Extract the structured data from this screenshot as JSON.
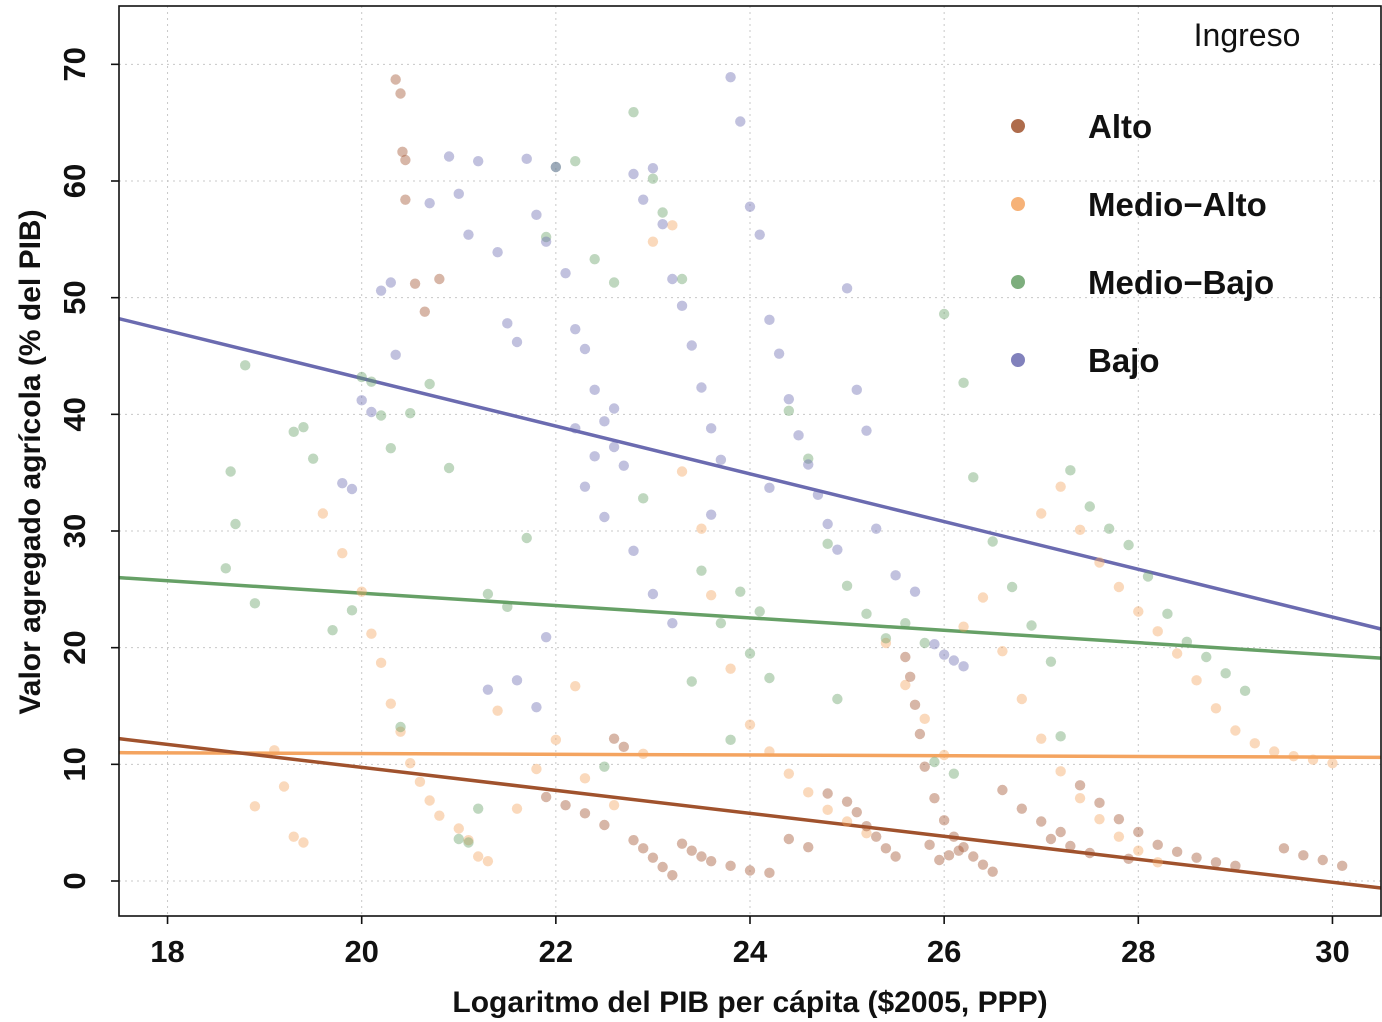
{
  "chart_data": {
    "type": "scatter",
    "title": "",
    "xlabel": "Logaritmo del PIB per cápita ($2005, PPP)",
    "ylabel": "Valor agregado agrícola (% del PIB)",
    "xlim": [
      17.5,
      30.5
    ],
    "ylim": [
      -3,
      75
    ],
    "xticks": [
      18,
      20,
      22,
      24,
      26,
      28,
      30
    ],
    "yticks": [
      0,
      10,
      20,
      30,
      40,
      50,
      60,
      70
    ],
    "grid": true,
    "legend": {
      "title": "Ingreso",
      "position": "top-right"
    },
    "series": [
      {
        "name": "Alto",
        "color": "#a0522d",
        "fit": {
          "x": [
            17.5,
            30.5
          ],
          "y": [
            12.2,
            -0.6
          ]
        },
        "points": [
          [
            20.35,
            68.7
          ],
          [
            20.4,
            67.5
          ],
          [
            20.42,
            62.5
          ],
          [
            20.45,
            61.8
          ],
          [
            20.45,
            58.4
          ],
          [
            20.55,
            51.2
          ],
          [
            20.8,
            51.6
          ],
          [
            20.65,
            48.8
          ],
          [
            21.9,
            7.2
          ],
          [
            22.1,
            6.5
          ],
          [
            22.3,
            5.8
          ],
          [
            22.5,
            4.8
          ],
          [
            22.6,
            12.2
          ],
          [
            22.7,
            11.5
          ],
          [
            22.8,
            3.5
          ],
          [
            22.9,
            2.8
          ],
          [
            23.0,
            2.0
          ],
          [
            23.1,
            1.2
          ],
          [
            23.2,
            0.5
          ],
          [
            23.3,
            3.2
          ],
          [
            23.4,
            2.6
          ],
          [
            23.5,
            2.1
          ],
          [
            23.6,
            1.7
          ],
          [
            23.8,
            1.3
          ],
          [
            24.0,
            0.9
          ],
          [
            24.2,
            0.7
          ],
          [
            24.4,
            3.6
          ],
          [
            24.6,
            2.9
          ],
          [
            24.8,
            7.5
          ],
          [
            25.0,
            6.8
          ],
          [
            25.1,
            5.9
          ],
          [
            25.2,
            4.7
          ],
          [
            25.3,
            3.8
          ],
          [
            25.4,
            2.8
          ],
          [
            25.5,
            2.1
          ],
          [
            25.6,
            19.2
          ],
          [
            25.65,
            17.5
          ],
          [
            25.7,
            15.1
          ],
          [
            25.75,
            12.6
          ],
          [
            25.8,
            9.8
          ],
          [
            25.9,
            7.1
          ],
          [
            26.0,
            5.2
          ],
          [
            26.1,
            3.8
          ],
          [
            26.2,
            2.9
          ],
          [
            26.3,
            2.1
          ],
          [
            26.4,
            1.4
          ],
          [
            26.5,
            0.8
          ],
          [
            26.6,
            7.8
          ],
          [
            26.8,
            6.2
          ],
          [
            27.0,
            5.1
          ],
          [
            27.2,
            4.2
          ],
          [
            27.4,
            8.2
          ],
          [
            27.6,
            6.7
          ],
          [
            27.8,
            5.3
          ],
          [
            28.0,
            4.2
          ],
          [
            28.2,
            3.1
          ],
          [
            28.4,
            2.5
          ],
          [
            28.6,
            2.0
          ],
          [
            28.8,
            1.6
          ],
          [
            29.0,
            1.3
          ],
          [
            29.5,
            2.8
          ],
          [
            29.7,
            2.2
          ],
          [
            29.9,
            1.8
          ],
          [
            30.1,
            1.3
          ],
          [
            26.05,
            2.2
          ],
          [
            25.95,
            1.8
          ],
          [
            26.15,
            2.6
          ],
          [
            25.85,
            3.1
          ],
          [
            27.1,
            3.6
          ],
          [
            27.3,
            3.0
          ],
          [
            27.5,
            2.4
          ],
          [
            27.9,
            1.9
          ]
        ]
      },
      {
        "name": "Medio−Alto",
        "color": "#f4a460",
        "fit": {
          "x": [
            17.5,
            30.5
          ],
          "y": [
            11.0,
            10.6
          ]
        },
        "points": [
          [
            19.3,
            3.8
          ],
          [
            19.4,
            3.3
          ],
          [
            19.6,
            31.5
          ],
          [
            19.8,
            28.1
          ],
          [
            20.0,
            24.8
          ],
          [
            20.1,
            21.2
          ],
          [
            20.2,
            18.7
          ],
          [
            20.3,
            15.2
          ],
          [
            20.4,
            12.8
          ],
          [
            20.5,
            10.1
          ],
          [
            20.6,
            8.5
          ],
          [
            20.7,
            6.9
          ],
          [
            20.8,
            5.6
          ],
          [
            21.0,
            4.5
          ],
          [
            21.1,
            3.5
          ],
          [
            21.2,
            2.1
          ],
          [
            21.3,
            1.7
          ],
          [
            21.6,
            6.2
          ],
          [
            21.8,
            9.6
          ],
          [
            22.0,
            12.1
          ],
          [
            22.3,
            8.8
          ],
          [
            22.6,
            6.5
          ],
          [
            22.9,
            10.9
          ],
          [
            23.0,
            54.8
          ],
          [
            23.2,
            56.2
          ],
          [
            23.3,
            35.1
          ],
          [
            23.5,
            30.2
          ],
          [
            23.6,
            24.5
          ],
          [
            23.8,
            18.2
          ],
          [
            24.0,
            13.4
          ],
          [
            24.2,
            11.1
          ],
          [
            24.4,
            9.2
          ],
          [
            24.6,
            7.6
          ],
          [
            24.8,
            6.1
          ],
          [
            25.0,
            5.1
          ],
          [
            25.2,
            4.1
          ],
          [
            25.4,
            20.4
          ],
          [
            25.6,
            16.8
          ],
          [
            25.8,
            13.9
          ],
          [
            26.0,
            10.8
          ],
          [
            26.2,
            21.8
          ],
          [
            26.4,
            24.3
          ],
          [
            26.6,
            19.7
          ],
          [
            26.8,
            15.6
          ],
          [
            27.0,
            12.2
          ],
          [
            27.2,
            9.4
          ],
          [
            27.4,
            7.1
          ],
          [
            27.6,
            5.3
          ],
          [
            27.8,
            3.8
          ],
          [
            28.0,
            2.6
          ],
          [
            28.2,
            1.6
          ],
          [
            27.0,
            31.5
          ],
          [
            27.2,
            33.8
          ],
          [
            27.4,
            30.1
          ],
          [
            27.6,
            27.3
          ],
          [
            27.8,
            25.2
          ],
          [
            28.0,
            23.1
          ],
          [
            28.2,
            21.4
          ],
          [
            28.4,
            19.5
          ],
          [
            28.6,
            17.2
          ],
          [
            28.8,
            14.8
          ],
          [
            29.0,
            12.9
          ],
          [
            29.2,
            11.8
          ],
          [
            29.4,
            11.1
          ],
          [
            29.6,
            10.7
          ],
          [
            29.8,
            10.4
          ],
          [
            30.0,
            10.1
          ],
          [
            19.2,
            8.1
          ],
          [
            19.1,
            11.2
          ],
          [
            18.9,
            6.4
          ],
          [
            21.4,
            14.6
          ],
          [
            22.2,
            16.7
          ]
        ]
      },
      {
        "name": "Medio−Bajo",
        "color": "#66a066",
        "fit": {
          "x": [
            17.5,
            30.5
          ],
          "y": [
            26.0,
            19.1
          ]
        },
        "points": [
          [
            18.6,
            26.8
          ],
          [
            18.7,
            30.6
          ],
          [
            18.8,
            44.2
          ],
          [
            18.65,
            35.1
          ],
          [
            18.9,
            23.8
          ],
          [
            19.3,
            38.5
          ],
          [
            19.5,
            36.2
          ],
          [
            19.4,
            38.9
          ],
          [
            19.7,
            21.5
          ],
          [
            19.9,
            23.2
          ],
          [
            20.0,
            43.2
          ],
          [
            20.1,
            42.8
          ],
          [
            20.2,
            39.9
          ],
          [
            20.3,
            37.1
          ],
          [
            20.5,
            40.1
          ],
          [
            20.7,
            42.6
          ],
          [
            20.9,
            35.4
          ],
          [
            21.0,
            3.6
          ],
          [
            21.1,
            3.3
          ],
          [
            21.2,
            6.2
          ],
          [
            21.5,
            23.5
          ],
          [
            21.7,
            29.4
          ],
          [
            21.9,
            55.2
          ],
          [
            22.0,
            61.2
          ],
          [
            22.2,
            61.7
          ],
          [
            22.4,
            53.3
          ],
          [
            22.6,
            51.3
          ],
          [
            22.8,
            65.9
          ],
          [
            23.0,
            60.2
          ],
          [
            23.1,
            57.3
          ],
          [
            23.3,
            51.6
          ],
          [
            23.5,
            26.6
          ],
          [
            23.7,
            22.1
          ],
          [
            23.9,
            24.8
          ],
          [
            24.0,
            19.5
          ],
          [
            24.2,
            17.4
          ],
          [
            24.4,
            40.3
          ],
          [
            24.6,
            36.2
          ],
          [
            24.8,
            28.9
          ],
          [
            25.0,
            25.3
          ],
          [
            25.2,
            22.9
          ],
          [
            25.4,
            20.8
          ],
          [
            25.6,
            22.1
          ],
          [
            25.8,
            20.4
          ],
          [
            26.0,
            48.6
          ],
          [
            26.2,
            42.7
          ],
          [
            26.3,
            34.6
          ],
          [
            26.5,
            29.1
          ],
          [
            26.7,
            25.2
          ],
          [
            26.9,
            21.9
          ],
          [
            27.1,
            18.8
          ],
          [
            27.3,
            35.2
          ],
          [
            27.5,
            32.1
          ],
          [
            27.7,
            30.2
          ],
          [
            27.9,
            28.8
          ],
          [
            28.1,
            26.1
          ],
          [
            28.3,
            22.9
          ],
          [
            28.5,
            20.5
          ],
          [
            28.7,
            19.2
          ],
          [
            28.9,
            17.8
          ],
          [
            29.1,
            16.3
          ],
          [
            23.4,
            17.1
          ],
          [
            24.1,
            23.1
          ],
          [
            22.9,
            32.8
          ],
          [
            21.3,
            24.6
          ],
          [
            22.5,
            9.8
          ],
          [
            23.8,
            12.1
          ],
          [
            24.9,
            15.6
          ],
          [
            25.9,
            10.2
          ],
          [
            26.1,
            9.2
          ],
          [
            27.2,
            12.4
          ],
          [
            20.4,
            13.2
          ]
        ]
      },
      {
        "name": "Bajo",
        "color": "#6b6bb0",
        "fit": {
          "x": [
            17.5,
            30.5
          ],
          "y": [
            48.2,
            21.6
          ]
        },
        "points": [
          [
            19.8,
            34.1
          ],
          [
            19.9,
            33.6
          ],
          [
            20.0,
            41.2
          ],
          [
            20.1,
            40.2
          ],
          [
            20.2,
            50.6
          ],
          [
            20.3,
            51.3
          ],
          [
            20.35,
            45.1
          ],
          [
            20.7,
            58.1
          ],
          [
            20.9,
            62.1
          ],
          [
            21.0,
            58.9
          ],
          [
            21.1,
            55.4
          ],
          [
            21.2,
            61.7
          ],
          [
            21.4,
            53.9
          ],
          [
            21.5,
            47.8
          ],
          [
            21.6,
            46.2
          ],
          [
            21.7,
            61.9
          ],
          [
            21.8,
            57.1
          ],
          [
            21.9,
            54.8
          ],
          [
            22.0,
            61.2
          ],
          [
            22.1,
            52.1
          ],
          [
            22.2,
            47.3
          ],
          [
            22.3,
            45.6
          ],
          [
            22.4,
            42.1
          ],
          [
            22.5,
            39.4
          ],
          [
            22.6,
            37.2
          ],
          [
            22.7,
            35.6
          ],
          [
            22.8,
            60.6
          ],
          [
            22.9,
            58.4
          ],
          [
            23.0,
            61.1
          ],
          [
            23.1,
            56.3
          ],
          [
            23.2,
            51.6
          ],
          [
            23.3,
            49.3
          ],
          [
            23.4,
            45.9
          ],
          [
            23.5,
            42.3
          ],
          [
            23.6,
            38.8
          ],
          [
            23.7,
            36.1
          ],
          [
            23.8,
            68.9
          ],
          [
            23.9,
            65.1
          ],
          [
            24.0,
            57.8
          ],
          [
            24.1,
            55.4
          ],
          [
            24.2,
            48.1
          ],
          [
            24.3,
            45.2
          ],
          [
            24.4,
            41.3
          ],
          [
            24.5,
            38.2
          ],
          [
            24.6,
            35.7
          ],
          [
            24.7,
            33.1
          ],
          [
            24.8,
            30.6
          ],
          [
            24.9,
            28.4
          ],
          [
            25.0,
            50.8
          ],
          [
            25.1,
            42.1
          ],
          [
            25.2,
            38.6
          ],
          [
            25.3,
            30.2
          ],
          [
            25.5,
            26.2
          ],
          [
            25.7,
            24.8
          ],
          [
            25.9,
            20.3
          ],
          [
            26.0,
            19.4
          ],
          [
            26.1,
            18.9
          ],
          [
            26.2,
            18.4
          ],
          [
            22.3,
            33.8
          ],
          [
            22.5,
            31.2
          ],
          [
            22.8,
            28.3
          ],
          [
            23.0,
            24.6
          ],
          [
            23.2,
            22.1
          ],
          [
            21.9,
            20.9
          ],
          [
            21.6,
            17.2
          ],
          [
            21.3,
            16.4
          ],
          [
            21.8,
            14.9
          ],
          [
            22.4,
            36.4
          ],
          [
            22.6,
            40.5
          ],
          [
            22.2,
            38.8
          ],
          [
            23.6,
            31.4
          ],
          [
            24.2,
            33.7
          ]
        ]
      }
    ]
  }
}
